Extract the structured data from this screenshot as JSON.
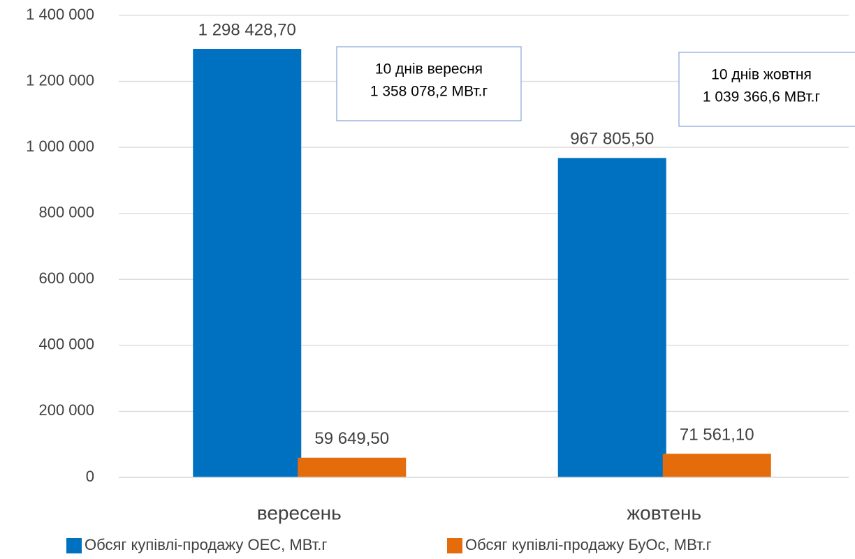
{
  "chart_data": {
    "type": "bar",
    "categories": [
      "вересень",
      "жовтень"
    ],
    "series": [
      {
        "name": "Обсяг купівлі-продажу ОЕС, МВт.г",
        "color": "#0070c0",
        "values": [
          1298428.7,
          967805.5
        ],
        "value_labels": [
          "1 298 428,70",
          "967 805,50"
        ]
      },
      {
        "name": "Обсяг купівлі-продажу БуОс, МВт.г",
        "color": "#e46c0a",
        "values": [
          59649.5,
          71561.1
        ],
        "value_labels": [
          "59 649,50",
          "71 561,10"
        ]
      }
    ],
    "ylim": [
      0,
      1400000
    ],
    "yticks": [
      0,
      {
        "value": 200000,
        "label": "200 000"
      },
      {
        "value": 400000,
        "label": "400 000"
      },
      {
        "value": 600000,
        "label": "600 000"
      },
      {
        "value": 800000,
        "label": "800 000"
      },
      {
        "value": 1000000,
        "label": "1 000 000"
      },
      {
        "value": 1200000,
        "label": "1 200 000"
      },
      {
        "value": 1400000,
        "label": "1 400 000"
      }
    ],
    "grid": true,
    "legend": "bottom",
    "annotations": [
      {
        "lines": [
          "10 днів вересня",
          "1 358 078,2 МВт.г"
        ]
      },
      {
        "lines": [
          "10 днів жовтня",
          "1 039 366,6 МВт.г"
        ]
      }
    ]
  }
}
